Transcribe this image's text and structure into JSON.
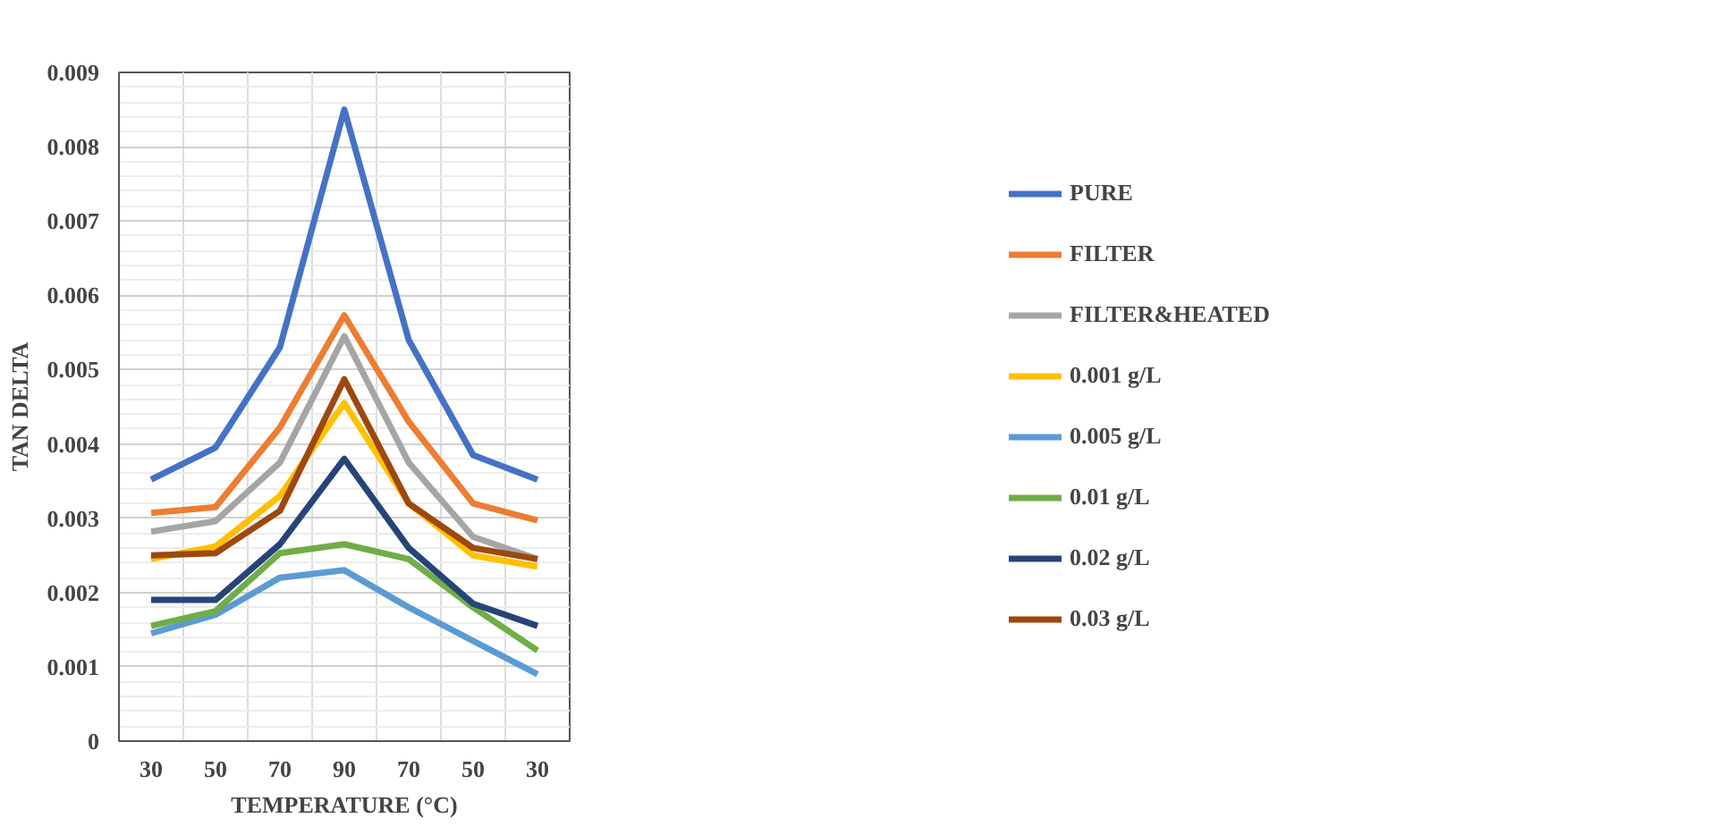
{
  "chart_data": {
    "type": "line",
    "xlabel": "TEMPERATURE (°C)",
    "ylabel": "TAN DELTA",
    "categories": [
      "30",
      "50",
      "70",
      "90",
      "70",
      "50",
      "30"
    ],
    "ylim": [
      0,
      0.009
    ],
    "yticks": [
      0,
      0.001,
      0.002,
      0.003,
      0.004,
      0.005,
      0.006,
      0.007,
      0.008,
      0.009
    ],
    "grid": true,
    "legend": "right",
    "marker": "none",
    "line_style": "solid",
    "series": [
      {
        "name": "PURE",
        "color": "#4472c4",
        "values": [
          0.00352,
          0.00395,
          0.0053,
          0.0085,
          0.0054,
          0.00385,
          0.00352
        ]
      },
      {
        "name": "FILTER",
        "color": "#ed7d31",
        "values": [
          0.00307,
          0.00315,
          0.00422,
          0.00573,
          0.0043,
          0.0032,
          0.00297
        ]
      },
      {
        "name": "FILTER&HEATED",
        "color": "#a5a5a5",
        "values": [
          0.00282,
          0.00296,
          0.00375,
          0.00545,
          0.00375,
          0.00275,
          0.00245
        ]
      },
      {
        "name": "0.001 g/L",
        "color": "#ffc000",
        "values": [
          0.00245,
          0.00262,
          0.0033,
          0.00455,
          0.0032,
          0.0025,
          0.00235
        ]
      },
      {
        "name": "0.005 g/L",
        "color": "#5b9bd5",
        "values": [
          0.00145,
          0.0017,
          0.0022,
          0.0023,
          0.0018,
          0.00135,
          0.0009
        ]
      },
      {
        "name": "0.01 g/L",
        "color": "#70ad47",
        "values": [
          0.00155,
          0.00175,
          0.00253,
          0.00265,
          0.00245,
          0.0018,
          0.00122
        ]
      },
      {
        "name": "0.02 g/L",
        "color": "#264478",
        "values": [
          0.0019,
          0.0019,
          0.00265,
          0.0038,
          0.0026,
          0.00185,
          0.00155
        ]
      },
      {
        "name": "0.03 g/L",
        "color": "#9e480e",
        "values": [
          0.0025,
          0.00253,
          0.0031,
          0.00487,
          0.0032,
          0.0026,
          0.00245
        ]
      }
    ]
  }
}
